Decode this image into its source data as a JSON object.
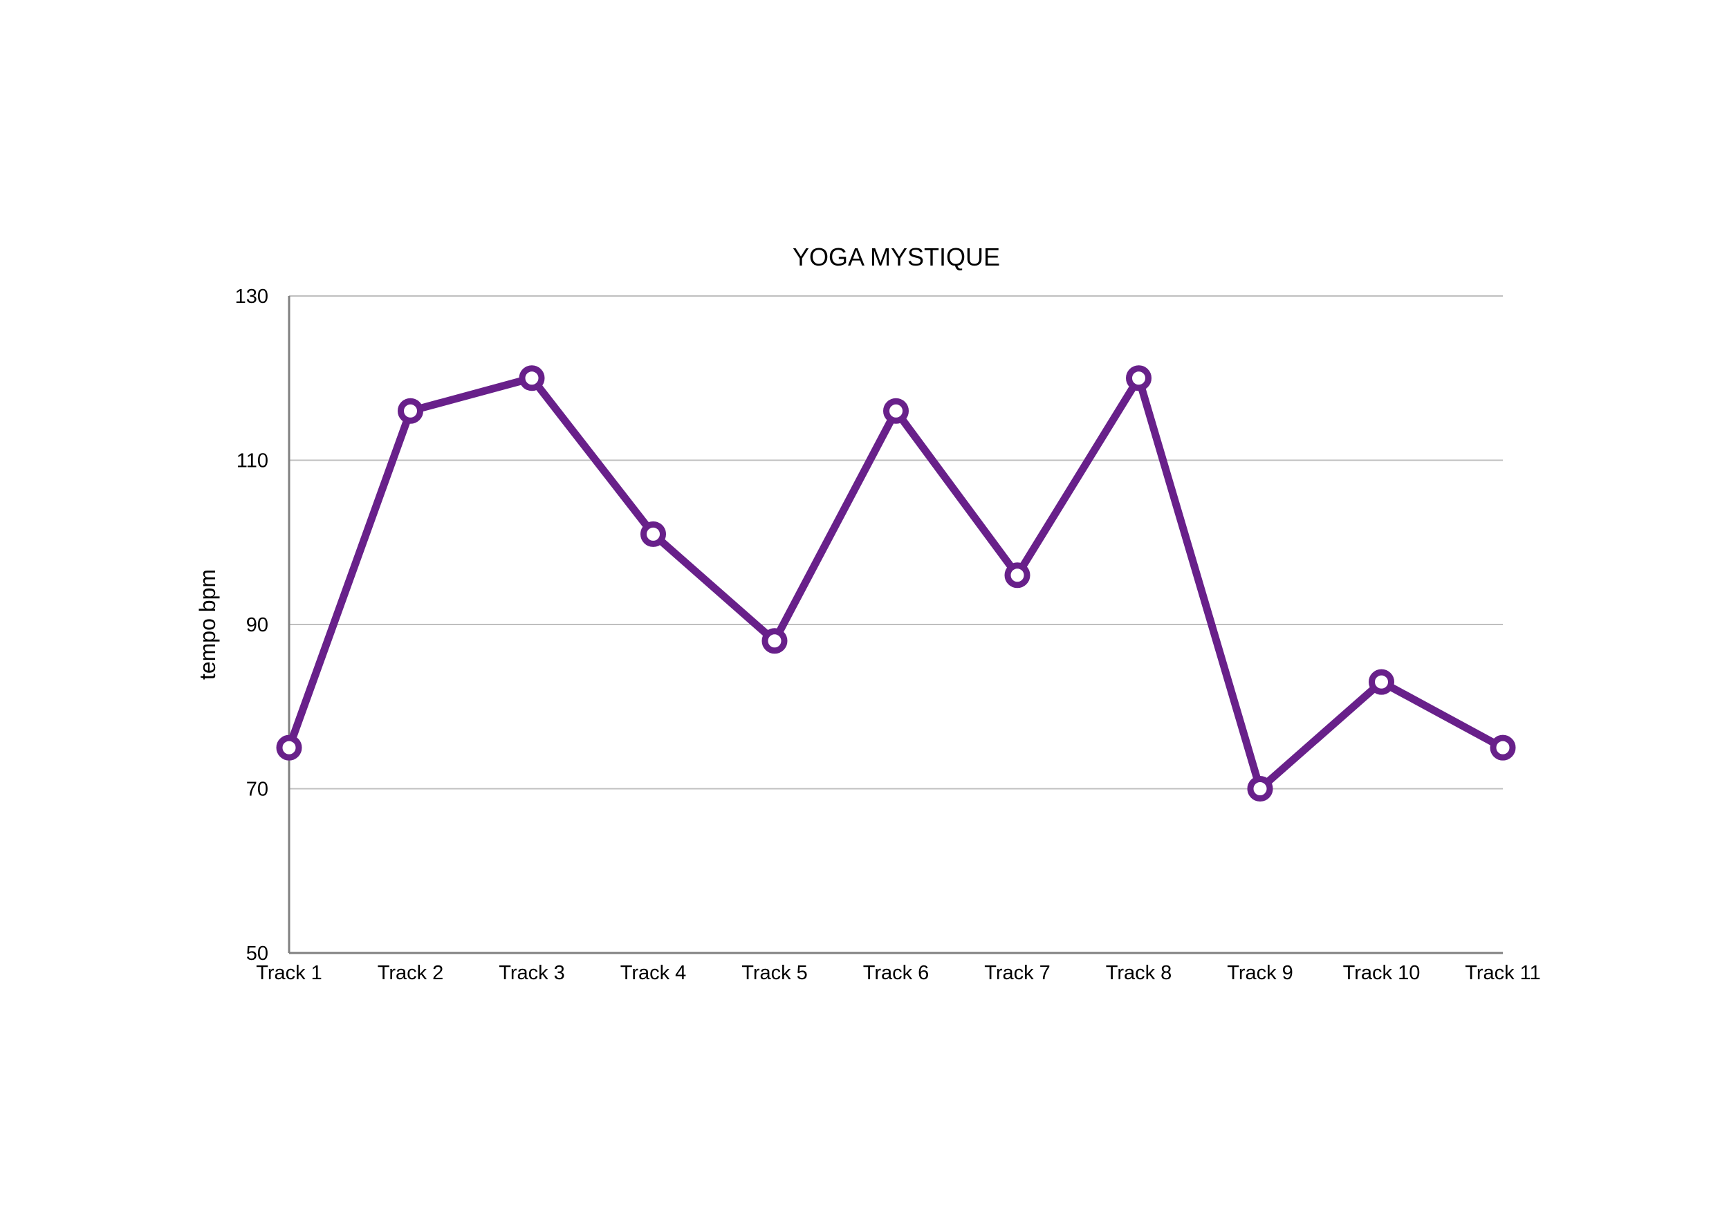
{
  "chart_data": {
    "type": "line",
    "title": "YOGA MYSTIQUE",
    "xlabel": "",
    "ylabel": "tempo bpm",
    "categories": [
      "Track 1",
      "Track 2",
      "Track 3",
      "Track 4",
      "Track 5",
      "Track 6",
      "Track 7",
      "Track 8",
      "Track 9",
      "Track 10",
      "Track 11"
    ],
    "series": [
      {
        "values": [
          75,
          116,
          120,
          101,
          88,
          116,
          96,
          120,
          70,
          83,
          75
        ],
        "color": "#68208a"
      }
    ],
    "ylim": [
      50,
      130
    ],
    "yticks": [
      50,
      70,
      90,
      110,
      130
    ],
    "grid": true,
    "legend": "none",
    "colors": {
      "line": "#68208a",
      "marker_fill": "#ffffff",
      "grid": "#bfbfbf",
      "axis": "#808080"
    }
  }
}
